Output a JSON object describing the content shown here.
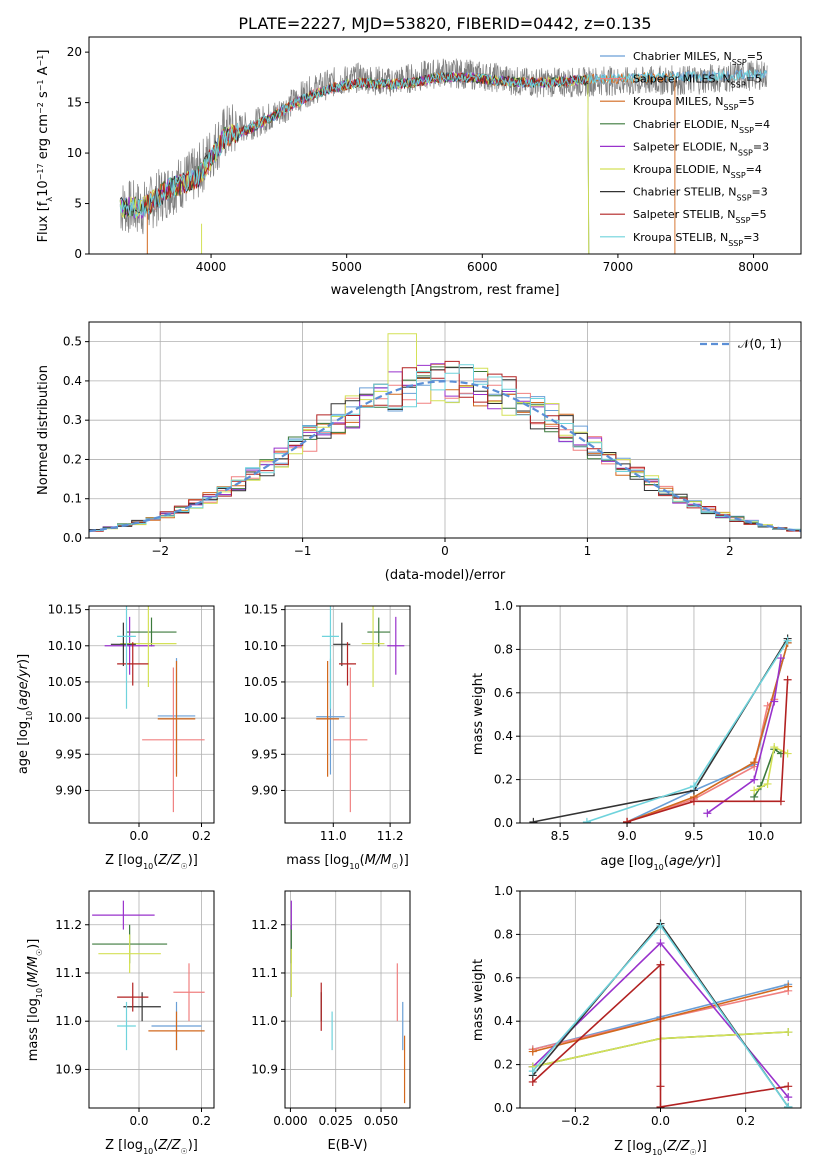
{
  "title": "PLATE=2227, MJD=53820, FIBERID=0442, z=0.135",
  "colors": {
    "Chabrier MILES": "#6a9fd6",
    "Salpeter MILES": "#f08080",
    "Kroupa MILES": "#d2691e",
    "Chabrier ELODIE": "#3c7a3c",
    "Salpeter ELODIE": "#9932cc",
    "Kroupa ELODIE": "#d4e157",
    "Chabrier STELIB": "#333333",
    "Salpeter STELIB": "#b22222",
    "Kroupa STELIB": "#6fd3dc"
  },
  "chart_data": [
    {
      "type": "line",
      "title": "PLATE=2227, MJD=53820, FIBERID=0442, z=0.135",
      "xlabel": "wavelength [Angstrom, rest frame]",
      "ylabel": "Flux [f_λ 10^-17 erg cm^-2 s^-1 A^-1]",
      "xlim": [
        3100,
        8350
      ],
      "ylim": [
        0,
        21.5
      ],
      "xticks": [
        "4000",
        "5000",
        "6000",
        "7000",
        "8000"
      ],
      "yticks": [
        "0",
        "5",
        "10",
        "15",
        "20"
      ],
      "legend_position": "right",
      "legend": [
        {
          "base": "Chabrier MILES, N",
          "sub": "SSP",
          "tail": "=5"
        },
        {
          "base": "Salpeter MILES, N",
          "sub": "SSP",
          "tail": "=5"
        },
        {
          "base": "Kroupa MILES, N",
          "sub": "SSP",
          "tail": "=5"
        },
        {
          "base": "Chabrier ELODIE, N",
          "sub": "SSP",
          "tail": "=4"
        },
        {
          "base": "Salpeter ELODIE, N",
          "sub": "SSP",
          "tail": "=3"
        },
        {
          "base": "Kroupa ELODIE, N",
          "sub": "SSP",
          "tail": "=4"
        },
        {
          "base": "Chabrier STELIB, N",
          "sub": "SSP",
          "tail": "=3"
        },
        {
          "base": "Salpeter STELIB, N",
          "sub": "SSP",
          "tail": "=5"
        },
        {
          "base": "Kroupa STELIB, N",
          "sub": "SSP",
          "tail": "=3"
        }
      ],
      "data_continuum": {
        "x": [
          3330,
          3500,
          3700,
          3900,
          4100,
          4300,
          4500,
          4700,
          4900,
          5100,
          5300,
          5500,
          5700,
          5900,
          6100,
          6300,
          6500,
          6700,
          6900,
          7100,
          7300,
          7500,
          7700,
          7900,
          8100
        ],
        "y": [
          4.7,
          4.5,
          6.5,
          8.0,
          12.0,
          12.8,
          14.0,
          16.0,
          17.0,
          17.5,
          17.0,
          17.5,
          18.0,
          17.8,
          17.5,
          17.0,
          17.0,
          17.0,
          17.2,
          17.0,
          17.2,
          17.2,
          17.4,
          17.6,
          17.8
        ]
      },
      "model_continuum": {
        "x": [
          3330,
          3500,
          3700,
          3900,
          4100,
          4300,
          4500,
          4700,
          4900,
          5100,
          5300,
          5500,
          5700,
          5900,
          6100,
          6300,
          6500,
          6700,
          6800
        ],
        "y": [
          4.6,
          4.6,
          6.5,
          7.5,
          11.5,
          12.5,
          14.0,
          15.5,
          16.5,
          17.0,
          16.8,
          17.0,
          17.5,
          17.5,
          17.2,
          17.0,
          17.0,
          17.2,
          17.3
        ]
      }
    },
    {
      "type": "bar",
      "xlabel": "(data-model)/error",
      "ylabel": "Normed distribution",
      "xlim": [
        -2.5,
        2.5
      ],
      "ylim": [
        0,
        0.55
      ],
      "xticks": [
        "−2",
        "−1",
        "0",
        "1",
        "2"
      ],
      "yticks": [
        "0.0",
        "0.1",
        "0.2",
        "0.3",
        "0.4",
        "0.5"
      ],
      "legend_position": "top-right",
      "gaussian_label": "𝒩(0, 1)",
      "gaussian_color": "#5b8fd6"
    },
    {
      "type": "scatter",
      "xlabel": "Z [log10(Z/Z☉)]",
      "ylabel": "age [log10(age/yr)]",
      "xlim": [
        -0.16,
        0.24
      ],
      "ylim": [
        9.855,
        10.155
      ],
      "xticks": [
        "0.0",
        "0.2"
      ],
      "yticks": [
        "9.90",
        "9.95",
        "10.00",
        "10.05",
        "10.10",
        "10.15"
      ],
      "points": [
        {
          "series": "Chabrier MILES",
          "x": 0.12,
          "y": 10.003,
          "xerr": 0.06,
          "yerr": 0.08
        },
        {
          "series": "Salpeter MILES",
          "x": 0.11,
          "y": 9.97,
          "xerr": 0.1,
          "yerr": 0.1
        },
        {
          "series": "Kroupa MILES",
          "x": 0.12,
          "y": 9.999,
          "xerr": 0.06,
          "yerr": 0.08
        },
        {
          "series": "Chabrier ELODIE",
          "x": 0.04,
          "y": 10.119,
          "xerr": 0.08,
          "yerr": 0.02
        },
        {
          "series": "Salpeter ELODIE",
          "x": -0.03,
          "y": 10.1,
          "xerr": 0.08,
          "yerr": 0.04
        },
        {
          "series": "Kroupa ELODIE",
          "x": 0.03,
          "y": 10.103,
          "xerr": 0.09,
          "yerr": 0.06
        },
        {
          "series": "Chabrier STELIB",
          "x": -0.05,
          "y": 10.102,
          "xerr": 0.04,
          "yerr": 0.03
        },
        {
          "series": "Salpeter STELIB",
          "x": -0.02,
          "y": 10.075,
          "xerr": 0.05,
          "yerr": 0.03
        },
        {
          "series": "Kroupa STELIB",
          "x": -0.04,
          "y": 10.113,
          "xerr": 0.03,
          "yerr": 0.1
        }
      ]
    },
    {
      "type": "scatter",
      "xlabel": "mass [log10(M/M☉)]",
      "xlim": [
        10.83,
        11.27
      ],
      "ylim": [
        9.855,
        10.155
      ],
      "xticks": [
        "11.0",
        "11.2"
      ],
      "yticks": [
        "9.90",
        "9.95",
        "10.00",
        "10.05",
        "10.10",
        "10.15"
      ],
      "points": [
        {
          "series": "Chabrier MILES",
          "x": 10.99,
          "y": 10.002,
          "xerr": 0.05,
          "yerr": 0.08
        },
        {
          "series": "Salpeter MILES",
          "x": 11.06,
          "y": 9.97,
          "xerr": 0.06,
          "yerr": 0.1
        },
        {
          "series": "Kroupa MILES",
          "x": 10.98,
          "y": 9.999,
          "xerr": 0.04,
          "yerr": 0.08
        },
        {
          "series": "Chabrier ELODIE",
          "x": 11.16,
          "y": 10.119,
          "xerr": 0.04,
          "yerr": 0.02
        },
        {
          "series": "Salpeter ELODIE",
          "x": 11.22,
          "y": 10.1,
          "xerr": 0.03,
          "yerr": 0.04
        },
        {
          "series": "Kroupa ELODIE",
          "x": 11.14,
          "y": 10.103,
          "xerr": 0.04,
          "yerr": 0.06
        },
        {
          "series": "Chabrier STELIB",
          "x": 11.03,
          "y": 10.102,
          "xerr": 0.03,
          "yerr": 0.03
        },
        {
          "series": "Salpeter STELIB",
          "x": 11.05,
          "y": 10.075,
          "xerr": 0.03,
          "yerr": 0.03
        },
        {
          "series": "Kroupa STELIB",
          "x": 10.99,
          "y": 10.113,
          "xerr": 0.03,
          "yerr": 0.1
        }
      ]
    },
    {
      "type": "line",
      "xlabel": "age [log10(age/yr)]",
      "ylabel": "mass weight",
      "xlim": [
        8.2,
        10.3
      ],
      "ylim": [
        0,
        1.0
      ],
      "xticks": [
        "8.5",
        "9.0",
        "9.5",
        "10.0"
      ],
      "yticks": [
        "0.0",
        "0.2",
        "0.4",
        "0.6",
        "0.8",
        "1.0"
      ],
      "series": [
        {
          "name": "Chabrier MILES",
          "x": [
            9.0,
            9.5,
            9.95,
            10.2
          ],
          "y": [
            0.005,
            0.15,
            0.27,
            0.83
          ]
        },
        {
          "name": "Salpeter MILES",
          "x": [
            9.0,
            9.5,
            9.95,
            10.05,
            10.1
          ],
          "y": [
            0.005,
            0.11,
            0.26,
            0.54,
            0.57
          ]
        },
        {
          "name": "Kroupa MILES",
          "x": [
            9.0,
            9.5,
            9.95,
            10.2
          ],
          "y": [
            0.005,
            0.12,
            0.28,
            0.83
          ]
        },
        {
          "name": "Chabrier ELODIE",
          "x": [
            9.95,
            10.0,
            10.1,
            10.15
          ],
          "y": [
            0.12,
            0.17,
            0.34,
            0.32
          ]
        },
        {
          "name": "Salpeter ELODIE",
          "x": [
            9.6,
            9.95,
            10.1,
            10.15
          ],
          "y": [
            0.045,
            0.2,
            0.56,
            0.76
          ]
        },
        {
          "name": "Kroupa ELODIE",
          "x": [
            9.95,
            10.05,
            10.1,
            10.2
          ],
          "y": [
            0.15,
            0.18,
            0.35,
            0.32
          ]
        },
        {
          "name": "Chabrier STELIB",
          "x": [
            8.3,
            9.5,
            10.2
          ],
          "y": [
            0.005,
            0.15,
            0.85
          ]
        },
        {
          "name": "Salpeter STELIB",
          "x": [
            9.0,
            9.5,
            10.15,
            10.2
          ],
          "y": [
            0.005,
            0.1,
            0.1,
            0.66
          ]
        },
        {
          "name": "Kroupa STELIB",
          "x": [
            8.7,
            9.5,
            10.2
          ],
          "y": [
            0.005,
            0.17,
            0.84
          ]
        }
      ]
    },
    {
      "type": "scatter",
      "xlabel": "Z [log10(Z/Z☉)]",
      "ylabel": "mass [log10(M/M☉)]",
      "xlim": [
        -0.16,
        0.24
      ],
      "ylim": [
        10.82,
        11.27
      ],
      "xticks": [
        "0.0",
        "0.2"
      ],
      "yticks": [
        "10.9",
        "11.0",
        "11.1",
        "11.2"
      ],
      "points": [
        {
          "series": "Chabrier MILES",
          "x": 0.12,
          "y": 10.99,
          "xerr": 0.08,
          "yerr": 0.05
        },
        {
          "series": "Salpeter MILES",
          "x": 0.16,
          "y": 11.06,
          "xerr": 0.05,
          "yerr": 0.06
        },
        {
          "series": "Kroupa MILES",
          "x": 0.12,
          "y": 10.98,
          "xerr": 0.09,
          "yerr": 0.04
        },
        {
          "series": "Chabrier ELODIE",
          "x": -0.03,
          "y": 11.16,
          "xerr": 0.12,
          "yerr": 0.04
        },
        {
          "series": "Salpeter ELODIE",
          "x": -0.05,
          "y": 11.22,
          "xerr": 0.1,
          "yerr": 0.03
        },
        {
          "series": "Kroupa ELODIE",
          "x": -0.03,
          "y": 11.14,
          "xerr": 0.1,
          "yerr": 0.04
        },
        {
          "series": "Chabrier STELIB",
          "x": 0.01,
          "y": 11.03,
          "xerr": 0.06,
          "yerr": 0.03
        },
        {
          "series": "Salpeter STELIB",
          "x": -0.02,
          "y": 11.05,
          "xerr": 0.05,
          "yerr": 0.03
        },
        {
          "series": "Kroupa STELIB",
          "x": -0.04,
          "y": 10.99,
          "xerr": 0.03,
          "yerr": 0.05
        }
      ]
    },
    {
      "type": "scatter",
      "xlabel": "E(B-V)",
      "xlim": [
        -0.003,
        0.066
      ],
      "ylim": [
        10.82,
        11.27
      ],
      "xticks": [
        "0.000",
        "0.025",
        "0.050"
      ],
      "yticks": [
        "10.9",
        "11.0",
        "11.1",
        "11.2"
      ],
      "points": [
        {
          "series": "Chabrier MILES",
          "x": 0.062,
          "y": 10.99,
          "yerr": 0.05
        },
        {
          "series": "Salpeter MILES",
          "x": 0.059,
          "y": 11.06,
          "yerr": 0.06
        },
        {
          "series": "Kroupa MILES",
          "x": 0.063,
          "y": 10.9,
          "yerr": 0.07
        },
        {
          "series": "Chabrier ELODIE",
          "x": 0.0005,
          "y": 11.16,
          "yerr": 0.04
        },
        {
          "series": "Salpeter ELODIE",
          "x": 0.0005,
          "y": 11.22,
          "yerr": 0.03
        },
        {
          "series": "Kroupa ELODIE",
          "x": 0.0005,
          "y": 11.1,
          "yerr": 0.05
        },
        {
          "series": "Chabrier STELIB",
          "x": 0.017,
          "y": 11.03,
          "yerr": 0.03
        },
        {
          "series": "Salpeter STELIB",
          "x": 0.017,
          "y": 11.03,
          "yerr": 0.05
        },
        {
          "series": "Kroupa STELIB",
          "x": 0.023,
          "y": 10.98,
          "yerr": 0.04
        }
      ]
    },
    {
      "type": "line",
      "xlabel": "Z [log10(Z/Z☉)]",
      "ylabel": "mass weight",
      "xlim": [
        -0.33,
        0.33
      ],
      "ylim": [
        0,
        1.0
      ],
      "xticks": [
        "−0.2",
        "0.0",
        "0.2"
      ],
      "yticks": [
        "0.0",
        "0.2",
        "0.4",
        "0.6",
        "0.8",
        "1.0"
      ],
      "series": [
        {
          "name": "Chabrier MILES",
          "x": [
            -0.3,
            0.0,
            0.3
          ],
          "y": [
            0.27,
            0.42,
            0.57
          ]
        },
        {
          "name": "Salpeter MILES",
          "x": [
            -0.3,
            0.0,
            0.3
          ],
          "y": [
            0.27,
            0.41,
            0.54
          ]
        },
        {
          "name": "Kroupa MILES",
          "x": [
            -0.3,
            0.0,
            0.3
          ],
          "y": [
            0.26,
            0.41,
            0.56
          ]
        },
        {
          "name": "Chabrier ELODIE",
          "x": [
            -0.3,
            0.0,
            0.3
          ],
          "y": [
            0.19,
            0.32,
            0.35
          ]
        },
        {
          "name": "Salpeter ELODIE",
          "x": [
            -0.3,
            0.0,
            0.3
          ],
          "y": [
            0.19,
            0.76,
            0.05
          ]
        },
        {
          "name": "Kroupa ELODIE",
          "x": [
            -0.3,
            0.0,
            0.3
          ],
          "y": [
            0.19,
            0.32,
            0.35
          ]
        },
        {
          "name": "Chabrier STELIB",
          "x": [
            -0.3,
            0.0,
            0.3
          ],
          "y": [
            0.15,
            0.85,
            0.005
          ]
        },
        {
          "name": "Salpeter STELIB",
          "x": [
            -0.3,
            0.0,
            0.0,
            0.0,
            0.3
          ],
          "y": [
            0.12,
            0.66,
            0.1,
            0.005,
            0.1
          ]
        },
        {
          "name": "Kroupa STELIB",
          "x": [
            -0.3,
            0.0,
            0.3
          ],
          "y": [
            0.17,
            0.84,
            0.005
          ]
        }
      ]
    }
  ]
}
